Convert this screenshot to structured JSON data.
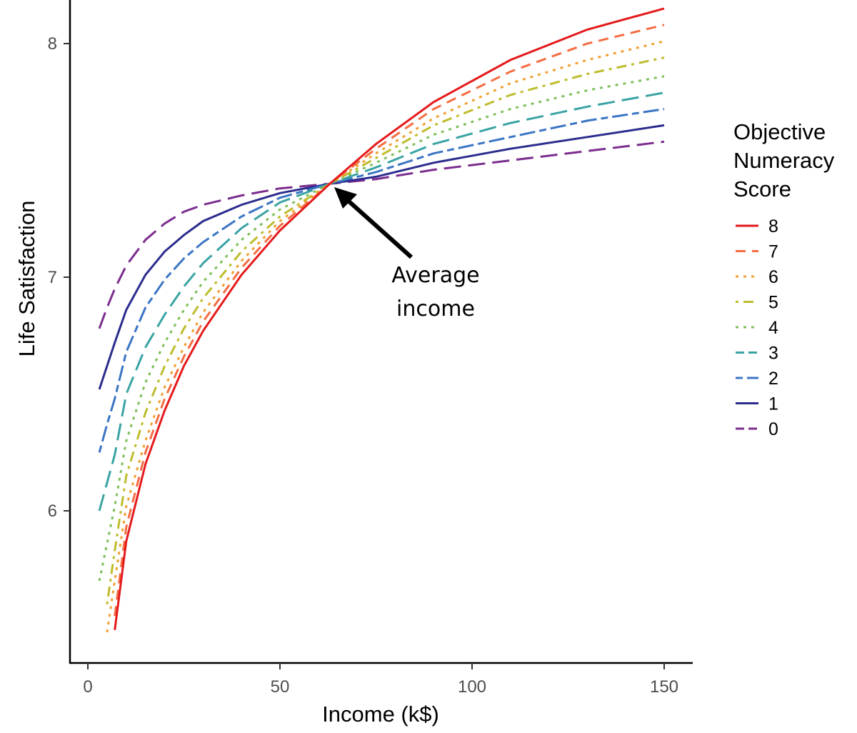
{
  "chart_data": {
    "type": "line",
    "title": "",
    "xlabel": "Income (k$)",
    "ylabel": "Life Satisfaction",
    "xlim": [
      -5,
      158
    ],
    "ylim": [
      5.35,
      8.15
    ],
    "x_ticks": [
      {
        "value": 0,
        "label": "0"
      },
      {
        "value": 50,
        "label": "50"
      },
      {
        "value": 100,
        "label": "100"
      },
      {
        "value": 150,
        "label": "150"
      }
    ],
    "y_ticks": [
      {
        "value": 6,
        "label": "6"
      },
      {
        "value": 7,
        "label": "7"
      },
      {
        "value": 8,
        "label": "8"
      }
    ],
    "grid": false,
    "legend": {
      "title_lines": [
        "Objective",
        "Numeracy",
        "Score"
      ],
      "placement": "right"
    },
    "x": [
      3,
      5,
      7,
      10,
      15,
      20,
      25,
      30,
      40,
      50,
      63,
      75,
      90,
      110,
      130,
      150
    ],
    "series": [
      {
        "name": "8",
        "color": "#e41a1c",
        "dash": "solid",
        "values": [
          null,
          null,
          5.49,
          5.87,
          6.2,
          6.43,
          6.62,
          6.77,
          7.01,
          7.2,
          7.4,
          7.57,
          7.75,
          7.93,
          8.06,
          8.15
        ]
      },
      {
        "name": "7",
        "color": "#f46d43",
        "dash": "dashed",
        "values": [
          null,
          null,
          5.55,
          5.93,
          6.25,
          6.48,
          6.66,
          6.81,
          7.04,
          7.22,
          7.4,
          7.55,
          7.72,
          7.88,
          8.0,
          8.08
        ]
      },
      {
        "name": "6",
        "color": "#f0a030",
        "dash": "dotted",
        "values": [
          null,
          5.48,
          5.7,
          6.02,
          6.3,
          6.53,
          6.7,
          6.85,
          7.07,
          7.24,
          7.4,
          7.53,
          7.68,
          7.83,
          7.93,
          8.01
        ]
      },
      {
        "name": "5",
        "color": "#bdbd2e",
        "dash": "dotdash",
        "values": [
          null,
          5.6,
          5.83,
          6.15,
          6.42,
          6.62,
          6.78,
          6.91,
          7.11,
          7.26,
          7.4,
          7.51,
          7.65,
          7.78,
          7.87,
          7.94
        ]
      },
      {
        "name": "4",
        "color": "#7fbf5b",
        "dash": "dotted",
        "values": [
          5.7,
          5.86,
          6.02,
          6.3,
          6.55,
          6.72,
          6.86,
          6.98,
          7.16,
          7.29,
          7.4,
          7.49,
          7.61,
          7.72,
          7.8,
          7.86
        ]
      },
      {
        "name": "3",
        "color": "#3aa3a3",
        "dash": "longdash",
        "values": [
          6.0,
          6.12,
          6.24,
          6.5,
          6.7,
          6.84,
          6.96,
          7.06,
          7.21,
          7.32,
          7.4,
          7.47,
          7.57,
          7.66,
          7.73,
          7.79
        ]
      },
      {
        "name": "2",
        "color": "#3b75c4",
        "dash": "twodash",
        "values": [
          6.25,
          6.37,
          6.48,
          6.68,
          6.87,
          6.99,
          7.08,
          7.15,
          7.26,
          7.34,
          7.4,
          7.45,
          7.53,
          7.6,
          7.67,
          7.72
        ]
      },
      {
        "name": "1",
        "color": "#2c2c8e",
        "dash": "solid",
        "values": [
          6.52,
          6.62,
          6.72,
          6.86,
          7.01,
          7.11,
          7.18,
          7.24,
          7.31,
          7.36,
          7.4,
          7.43,
          7.49,
          7.55,
          7.6,
          7.65
        ]
      },
      {
        "name": "0",
        "color": "#7b2d8e",
        "dash": "longdash",
        "values": [
          6.78,
          6.87,
          6.95,
          7.05,
          7.16,
          7.23,
          7.28,
          7.31,
          7.35,
          7.38,
          7.4,
          7.42,
          7.46,
          7.5,
          7.54,
          7.58
        ]
      }
    ],
    "annotation": {
      "lines": [
        "Average",
        "income"
      ],
      "target": {
        "x": 63,
        "y": 7.4
      }
    }
  }
}
